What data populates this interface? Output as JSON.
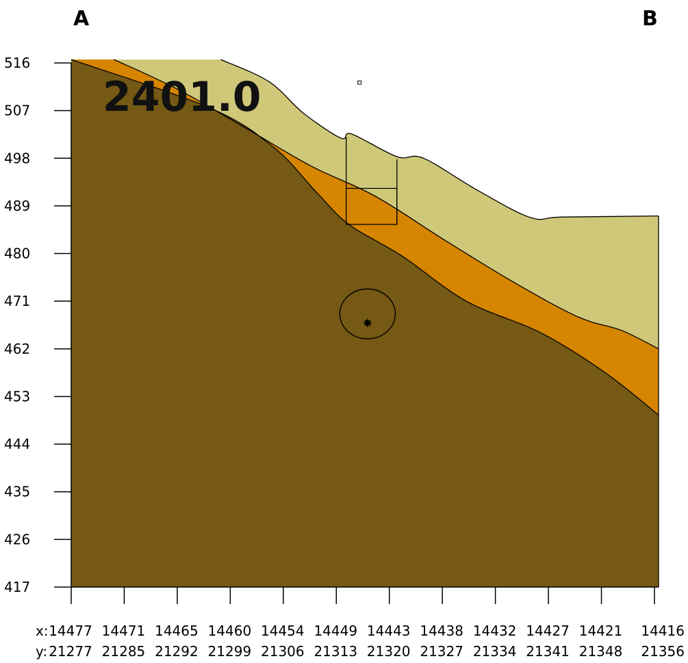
{
  "labels": {
    "left_end": "A",
    "right_end": "B",
    "value": "2401.0"
  },
  "chart_data": {
    "type": "area",
    "title": "2401.0",
    "xlabel": "",
    "ylabel": "",
    "ylim": [
      417,
      516
    ],
    "xlim": [
      0,
      11
    ],
    "grid": false,
    "legend": "none",
    "y_ticks": [
      516,
      507,
      498,
      489,
      480,
      471,
      462,
      453,
      444,
      435,
      426,
      417
    ],
    "x_tick_labels": {
      "x": [
        "14477",
        "14471",
        "14465",
        "14460",
        "14454",
        "14449",
        "14443",
        "14438",
        "14432",
        "14427",
        "14421",
        "14416"
      ],
      "y": [
        "21277",
        "21285",
        "21292",
        "21299",
        "21306",
        "21313",
        "21320",
        "21327",
        "21334",
        "21341",
        "21348",
        "21356"
      ],
      "x_prefix": "x:",
      "y_prefix": "y:"
    },
    "layers": [
      {
        "color": "#cfc879",
        "top": [
          [
            2.8,
            517.0
          ],
          [
            3.7,
            512.5
          ],
          [
            4.35,
            506.5
          ],
          [
            5.05,
            501.8
          ],
          [
            5.25,
            502.6
          ],
          [
            6.1,
            498.3
          ],
          [
            6.6,
            498.0
          ],
          [
            7.6,
            492.0
          ],
          [
            8.6,
            486.8
          ],
          [
            9.2,
            486.9
          ],
          [
            11.0,
            487.1
          ]
        ]
      },
      {
        "color": "#d58500",
        "top": [
          [
            0.8,
            517.0
          ],
          [
            2.0,
            511.0
          ],
          [
            3.3,
            503.5
          ],
          [
            4.5,
            496.5
          ],
          [
            5.7,
            490.8
          ],
          [
            7.0,
            482.5
          ],
          [
            8.3,
            474.5
          ],
          [
            9.5,
            468.0
          ],
          [
            10.3,
            465.5
          ],
          [
            11.0,
            462.0
          ]
        ]
      },
      {
        "color": "#755914",
        "top": [
          [
            0.0,
            517.0
          ],
          [
            2.6,
            507.5
          ],
          [
            3.8,
            500.0
          ],
          [
            4.6,
            491.5
          ],
          [
            5.2,
            485.5
          ],
          [
            6.2,
            479.5
          ],
          [
            7.4,
            471.0
          ],
          [
            8.8,
            465.0
          ],
          [
            10.0,
            457.5
          ],
          [
            11.0,
            449.5
          ]
        ]
      }
    ],
    "annotations": [
      {
        "kind": "ellipse",
        "cx": 5.55,
        "cy": 468.6,
        "rx": 0.52,
        "ry": 4.7
      },
      {
        "kind": "star",
        "x": 5.55,
        "y": 466.9
      },
      {
        "kind": "small-square",
        "x": 5.4,
        "y": 512.3
      },
      {
        "kind": "polyline",
        "points": [
          [
            5.15,
            502.0
          ],
          [
            5.15,
            485.5
          ],
          [
            6.1,
            485.5
          ],
          [
            6.1,
            497.8
          ]
        ]
      },
      {
        "kind": "polyline",
        "points": [
          [
            5.15,
            492.3
          ],
          [
            6.1,
            492.3
          ],
          [
            6.1,
            485.5
          ]
        ]
      }
    ]
  }
}
